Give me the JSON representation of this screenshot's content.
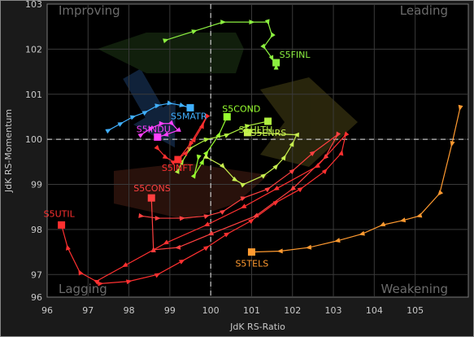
{
  "chart_data": {
    "type": "scatter",
    "xlabel": "JdK RS-Ratio",
    "ylabel": "JdK RS-Momentum",
    "xlim": [
      96,
      106.3
    ],
    "ylim": [
      96.5,
      103
    ],
    "x_ticks": [
      "96",
      "97",
      "98",
      "99",
      "100",
      "101",
      "102",
      "103",
      "104",
      "105"
    ],
    "y_ticks": [
      "96",
      "97",
      "98",
      "99",
      "100",
      "101",
      "102",
      "103"
    ],
    "quadrants": {
      "top_left": "Improving",
      "top_right": "Leading",
      "bottom_left": "Lagging",
      "bottom_right": "Weakening"
    },
    "center": [
      100,
      100
    ],
    "grid": true,
    "series": [
      {
        "name": "S5FINL",
        "color": "#8cf040",
        "points": [
          [
            98.9,
            102.2
          ],
          [
            99.6,
            102.4
          ],
          [
            100.3,
            102.6
          ],
          [
            101.0,
            102.6
          ],
          [
            101.4,
            102.6
          ],
          [
            101.5,
            102.3
          ],
          [
            101.3,
            102.05
          ],
          [
            101.5,
            101.8
          ],
          [
            101.6,
            101.6
          ],
          [
            101.6,
            101.7
          ]
        ]
      },
      {
        "name": "S5COND",
        "color": "#98ff30",
        "points": [
          [
            99.7,
            99.6
          ],
          [
            99.6,
            99.2
          ],
          [
            99.8,
            99.5
          ],
          [
            99.9,
            99.7
          ],
          [
            100.2,
            100.1
          ],
          [
            100.4,
            100.5
          ]
        ]
      },
      {
        "name": "S5HLTH",
        "color": "#b0f040",
        "points": [
          [
            99.2,
            99.3
          ],
          [
            99.3,
            99.5
          ],
          [
            99.5,
            99.8
          ],
          [
            99.9,
            100.0
          ],
          [
            100.4,
            100.1
          ],
          [
            100.9,
            100.3
          ],
          [
            101.4,
            100.4
          ]
        ]
      },
      {
        "name": "S5ENRS",
        "color": "#c8f050",
        "points": [
          [
            99.9,
            99.6
          ],
          [
            100.3,
            99.4
          ],
          [
            100.6,
            99.1
          ],
          [
            100.8,
            99.0
          ],
          [
            101.3,
            99.2
          ],
          [
            101.6,
            99.4
          ],
          [
            101.8,
            99.6
          ],
          [
            102.0,
            99.9
          ],
          [
            102.1,
            100.1
          ],
          [
            100.9,
            100.15
          ]
        ]
      },
      {
        "name": "S5MATR",
        "color": "#40b0ff",
        "points": [
          [
            97.5,
            100.2
          ],
          [
            97.8,
            100.35
          ],
          [
            98.1,
            100.5
          ],
          [
            98.4,
            100.6
          ],
          [
            98.7,
            100.75
          ],
          [
            99.0,
            100.8
          ],
          [
            99.3,
            100.75
          ],
          [
            99.5,
            100.7
          ]
        ]
      },
      {
        "name": "S5INDU",
        "color": "#ff40ff",
        "points": [
          [
            98.3,
            100.1
          ],
          [
            98.55,
            100.25
          ],
          [
            98.8,
            100.35
          ],
          [
            99.05,
            100.35
          ],
          [
            99.2,
            100.2
          ],
          [
            98.9,
            100.1
          ],
          [
            98.7,
            100.05
          ]
        ]
      },
      {
        "name": "S5INFT",
        "color": "#ff3030",
        "points": [
          [
            98.7,
            99.8
          ],
          [
            98.9,
            99.6
          ],
          [
            99.1,
            99.5
          ],
          [
            99.4,
            99.7
          ],
          [
            99.6,
            100.0
          ],
          [
            99.8,
            100.3
          ],
          [
            99.9,
            100.5
          ],
          [
            99.5,
            99.9
          ],
          [
            99.2,
            99.55
          ]
        ]
      },
      {
        "name": "S5CONS",
        "color": "#ff4040",
        "points": [
          [
            98.3,
            98.3
          ],
          [
            98.7,
            98.25
          ],
          [
            99.3,
            98.25
          ],
          [
            99.9,
            98.3
          ],
          [
            100.3,
            98.4
          ],
          [
            100.8,
            98.7
          ],
          [
            101.4,
            98.9
          ],
          [
            102.0,
            99.3
          ],
          [
            102.5,
            99.7
          ],
          [
            103.1,
            100.1
          ],
          [
            102.8,
            99.6
          ],
          [
            102.0,
            98.9
          ],
          [
            101.1,
            98.3
          ],
          [
            100.0,
            97.9
          ],
          [
            99.2,
            97.6
          ],
          [
            98.6,
            97.55
          ],
          [
            98.55,
            98.7
          ]
        ]
      },
      {
        "name": "S5UTIL",
        "color": "#ff3030",
        "points": [
          [
            97.3,
            96.8
          ],
          [
            98.0,
            96.85
          ],
          [
            98.7,
            97.0
          ],
          [
            99.3,
            97.3
          ],
          [
            99.9,
            97.6
          ],
          [
            100.4,
            97.9
          ],
          [
            101.0,
            98.2
          ],
          [
            101.6,
            98.6
          ],
          [
            102.2,
            98.9
          ],
          [
            102.8,
            99.3
          ],
          [
            103.2,
            99.7
          ],
          [
            103.3,
            100.1
          ],
          [
            102.6,
            99.4
          ],
          [
            101.6,
            98.9
          ],
          [
            100.8,
            98.5
          ],
          [
            99.9,
            98.1
          ],
          [
            98.9,
            97.7
          ],
          [
            97.9,
            97.2
          ],
          [
            97.2,
            96.85
          ],
          [
            96.8,
            97.05
          ],
          [
            96.5,
            97.6
          ],
          [
            96.35,
            98.1
          ]
        ]
      },
      {
        "name": "S5TELS",
        "color": "#ff9a30",
        "points": [
          [
            106.1,
            100.7
          ],
          [
            105.9,
            99.9
          ],
          [
            105.6,
            98.8
          ],
          [
            105.1,
            98.3
          ],
          [
            104.7,
            98.2
          ],
          [
            104.2,
            98.1
          ],
          [
            103.7,
            97.9
          ],
          [
            103.1,
            97.75
          ],
          [
            102.4,
            97.6
          ],
          [
            101.7,
            97.52
          ],
          [
            101.0,
            97.5
          ]
        ]
      }
    ],
    "current_labels": {
      "S5FINL": "S5FINL",
      "S5COND": "S5COND",
      "S5HLTH": "S5HLTH",
      "S5ENRS": "S5ENRS",
      "S5MATR": "S5MATR",
      "S5INDU": "S5INDU",
      "S5INFT": "S5INFT",
      "S5CONS": "S5CONS",
      "S5UTIL": "S5UTIL",
      "S5TELS": "S5TELS"
    }
  }
}
